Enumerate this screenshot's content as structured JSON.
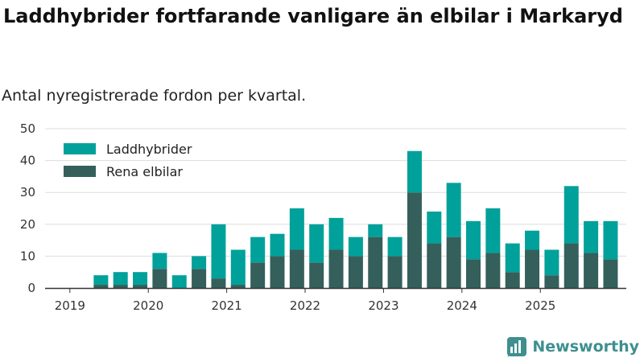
{
  "title": "Laddhybrider fortfarande vanligare än elbilar i Markaryd",
  "subtitle": "Antal nyregistrerade fordon per kvartal.",
  "brand": "Newsworthy",
  "colors": {
    "hybrid": "#00a19a",
    "electric": "#355f5b",
    "grid": "#dddddd",
    "axis": "#333333"
  },
  "chart_data": {
    "type": "bar",
    "stacked": true,
    "title": "Laddhybrider fortfarande vanligare än elbilar i Markaryd",
    "subtitle": "Antal nyregistrerade fordon per kvartal.",
    "xlabel": "",
    "ylabel": "",
    "ylim": [
      0,
      50
    ],
    "yticks": [
      0,
      10,
      20,
      30,
      40,
      50
    ],
    "legend_position": "top-left",
    "categories": [
      "2019 Q1",
      "2019 Q2",
      "2019 Q3",
      "2019 Q4",
      "2020 Q1",
      "2020 Q2",
      "2020 Q3",
      "2020 Q4",
      "2021 Q1",
      "2021 Q2",
      "2021 Q3",
      "2021 Q4",
      "2022 Q1",
      "2022 Q2",
      "2022 Q3",
      "2022 Q4",
      "2023 Q1",
      "2023 Q2",
      "2023 Q3",
      "2023 Q4",
      "2024 Q1",
      "2024 Q2",
      "2024 Q3",
      "2024 Q4",
      "2025 Q1",
      "2025 Q2",
      "2025 Q3",
      "2025 Q4"
    ],
    "xtick_labels": [
      {
        "index": 0,
        "label": "2019"
      },
      {
        "index": 4,
        "label": "2020"
      },
      {
        "index": 8,
        "label": "2021"
      },
      {
        "index": 12,
        "label": "2022"
      },
      {
        "index": 16,
        "label": "2023"
      },
      {
        "index": 20,
        "label": "2024"
      },
      {
        "index": 24,
        "label": "2025"
      }
    ],
    "series": [
      {
        "name": "Rena elbilar",
        "key": "electric",
        "values": [
          0,
          1,
          1,
          1,
          6,
          0,
          6,
          3,
          1,
          8,
          10,
          12,
          8,
          12,
          10,
          16,
          10,
          30,
          14,
          16,
          9,
          11,
          5,
          12,
          4,
          14,
          11,
          9
        ]
      },
      {
        "name": "Laddhybrider",
        "key": "hybrid",
        "values": [
          0,
          3,
          4,
          4,
          5,
          4,
          4,
          17,
          11,
          8,
          7,
          13,
          12,
          10,
          6,
          4,
          6,
          13,
          10,
          17,
          12,
          14,
          9,
          6,
          8,
          18,
          10,
          12
        ]
      }
    ]
  }
}
